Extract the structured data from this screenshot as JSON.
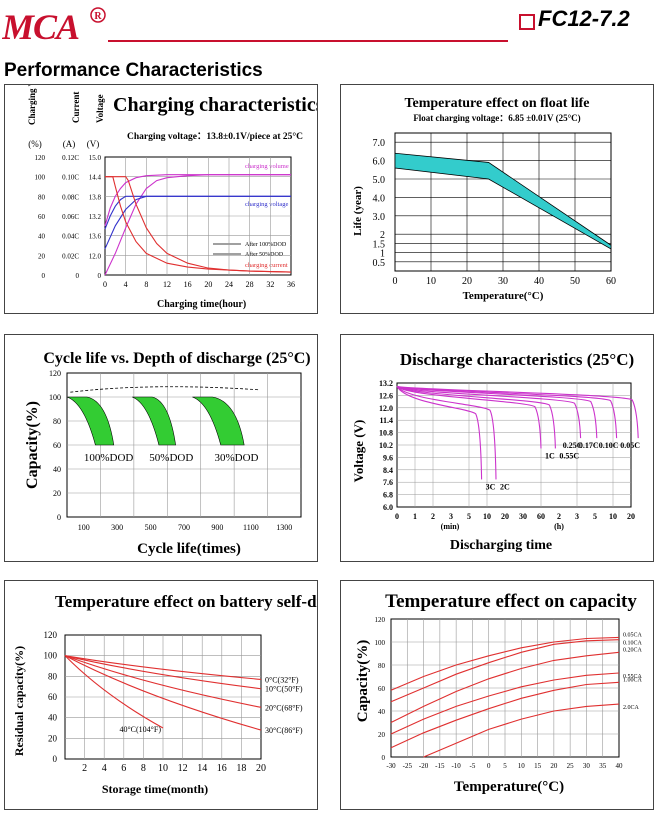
{
  "brand": {
    "logo_text": "MCA",
    "registered": "®",
    "color": "#c8102e"
  },
  "model": "FC12-7.2",
  "section_title": "Performance Characteristics",
  "chart_data": [
    {
      "id": "charging",
      "type": "line",
      "title": "Charging characteristics",
      "subtitle": "Charging voltage：13.8±0.1V/piece at 25°C",
      "xlabel": "Charging time(hour)",
      "axis_titles": {
        "volume": "Charging Volume",
        "current": "Current",
        "voltage": "Voltage"
      },
      "axis_units": {
        "volume": "(%)",
        "current": "(A)",
        "voltage": "(V)"
      },
      "x_ticks": [
        "0",
        "4",
        "8",
        "12",
        "16",
        "20",
        "24",
        "28",
        "32",
        "36"
      ],
      "xlim": [
        0,
        36
      ],
      "volume_ticks": [
        "120",
        "100",
        "80",
        "60",
        "40",
        "20",
        "0"
      ],
      "current_ticks": [
        "0.12C",
        "0.10C",
        "0.08C",
        "0.06C",
        "0.04C",
        "0.02C",
        "0"
      ],
      "voltage_ticks": [
        "15.0",
        "14.4",
        "13.8",
        "13.2",
        "13.6",
        "12.0",
        "0"
      ],
      "annotations": [
        "charging volume",
        "charging voltage",
        "charging current"
      ],
      "legend": [
        "After 100%DOD",
        "After 50%DOD"
      ],
      "series": [
        {
          "group": "volume",
          "color": "#cc33cc",
          "x": [
            0,
            2,
            4,
            6,
            8,
            10,
            12,
            16,
            20,
            24,
            28,
            36
          ],
          "y": [
            0,
            22,
            48,
            72,
            88,
            96,
            99,
            101,
            102,
            102,
            102,
            102
          ]
        },
        {
          "group": "volume",
          "color": "#cc33cc",
          "x": [
            0,
            1,
            2,
            3,
            4,
            6,
            8,
            12,
            20,
            36
          ],
          "y": [
            50,
            68,
            80,
            88,
            94,
            99,
            101,
            102,
            102,
            102
          ]
        },
        {
          "group": "voltage",
          "color": "#3333cc",
          "x": [
            0,
            2,
            4,
            6,
            8,
            10,
            12,
            20,
            36
          ],
          "y": [
            12.2,
            12.9,
            13.4,
            13.7,
            13.8,
            13.8,
            13.8,
            13.8,
            13.8
          ]
        },
        {
          "group": "voltage",
          "color": "#3333cc",
          "x": [
            0,
            1,
            2,
            3,
            4,
            6,
            8,
            36
          ],
          "y": [
            12.8,
            13.2,
            13.5,
            13.7,
            13.8,
            13.8,
            13.8,
            13.8
          ]
        },
        {
          "group": "current",
          "color": "#e03030",
          "x": [
            0,
            4,
            4.5,
            6,
            8,
            10,
            12,
            16,
            20,
            24,
            28,
            36
          ],
          "y": [
            100,
            100,
            96,
            72,
            48,
            32,
            22,
            12,
            7,
            5,
            4,
            3
          ]
        },
        {
          "group": "current",
          "color": "#e03030",
          "x": [
            0,
            1.5,
            2,
            3,
            4,
            6,
            8,
            12,
            16,
            20,
            28,
            36
          ],
          "y": [
            100,
            100,
            90,
            70,
            54,
            34,
            22,
            12,
            8,
            6,
            4,
            3
          ]
        }
      ]
    },
    {
      "id": "float_life",
      "type": "area",
      "title": "Temperature effect on float life",
      "subtitle": "Float charging voltage：6.85 ±0.01V (25°C)",
      "xlabel": "Temperature(°C)",
      "ylabel": "Life (year)",
      "x_ticks": [
        "0",
        "10",
        "20",
        "30",
        "40",
        "50",
        "60"
      ],
      "xlim": [
        0,
        60
      ],
      "y_ticks": [
        {
          "v": 0.5,
          "t": "0.5"
        },
        {
          "v": 1,
          "t": "1"
        },
        {
          "v": 1.5,
          "t": "1.5"
        },
        {
          "v": 2,
          "t": "2"
        },
        {
          "v": 3,
          "t": "3.0"
        },
        {
          "v": 4,
          "t": "4.0"
        },
        {
          "v": 5,
          "t": "5.0"
        },
        {
          "v": 6,
          "t": "6.0"
        },
        {
          "v": 7,
          "t": "7.0"
        }
      ],
      "ylim": [
        0,
        7.5
      ],
      "band": {
        "color": "#33cccc",
        "upper": {
          "x": [
            0,
            26,
            60
          ],
          "y": [
            6.4,
            5.9,
            1.4
          ]
        },
        "lower": {
          "x": [
            0,
            26,
            60
          ],
          "y": [
            5.6,
            5.0,
            1.2
          ]
        }
      }
    },
    {
      "id": "cycle_life",
      "type": "area",
      "title": "Cycle life vs. Depth of discharge (25°C)",
      "xlabel": "Cycle life(times)",
      "ylabel": "Capacity(%)",
      "x_ticks": [
        "100",
        "300",
        "500",
        "700",
        "900",
        "1100",
        "1300"
      ],
      "xlim": [
        0,
        1400
      ],
      "y_ticks": [
        "0",
        "20",
        "40",
        "60",
        "80",
        "100",
        "120"
      ],
      "ylim": [
        0,
        120
      ],
      "band_color": "#33cc33",
      "bands": [
        {
          "label": "100%DOD",
          "x0": 0,
          "x1": 330,
          "xa": 170,
          "xb": 280
        },
        {
          "label": "50%DOD",
          "x0": 390,
          "x1": 700,
          "xa": 550,
          "xb": 650
        },
        {
          "label": "30%DOD",
          "x0": 750,
          "x1": 1400,
          "xa": 920,
          "xb": 1060
        }
      ]
    },
    {
      "id": "discharge",
      "type": "line",
      "title": "Discharge characteristics (25°C)",
      "xlabel": "Discharging time",
      "ylabel": "Voltage (V)",
      "x_ticks": [
        "0",
        "1",
        "2",
        "3",
        "5",
        "10",
        "20",
        "30",
        "60",
        "2",
        "3",
        "5",
        "10",
        "20"
      ],
      "x_units": [
        "(min)",
        "(h)"
      ],
      "y_ticks": [
        "6.0",
        "6.8",
        "7.6",
        "8.4",
        "9.6",
        "10.2",
        "10.8",
        "11.4",
        "12.0",
        "12.6",
        "13.2"
      ],
      "line_color": "#cc33cc",
      "rates": [
        "3C",
        "2C",
        "1C",
        "0.55C",
        "0.25C",
        "0.17C",
        "0.10C",
        "0.05C"
      ]
    },
    {
      "id": "self_discharge",
      "type": "line",
      "title": "Temperature effect on battery self-discharge",
      "xlabel": "Storage time(month)",
      "ylabel": "Residual capacity(%)",
      "x_ticks": [
        "2",
        "4",
        "6",
        "8",
        "10",
        "12",
        "14",
        "16",
        "18",
        "20"
      ],
      "xlim": [
        0,
        20
      ],
      "y_ticks": [
        "0",
        "20",
        "40",
        "60",
        "80",
        "100",
        "120"
      ],
      "ylim": [
        0,
        120
      ],
      "series": [
        {
          "name": "0°C(32°F)",
          "color": "#e03030",
          "x": [
            0,
            20
          ],
          "y": [
            100,
            77
          ]
        },
        {
          "name": "10°C(50°F)",
          "color": "#e03030",
          "x": [
            0,
            20
          ],
          "y": [
            100,
            68
          ]
        },
        {
          "name": "20°C(68°F)",
          "color": "#e03030",
          "x": [
            0,
            20
          ],
          "y": [
            100,
            50
          ]
        },
        {
          "name": "30°C(86°F)",
          "color": "#e03030",
          "x": [
            0,
            20
          ],
          "y": [
            100,
            28
          ]
        },
        {
          "name": "40°C(104°F)",
          "color": "#e03030",
          "x": [
            0,
            10
          ],
          "y": [
            100,
            30
          ]
        }
      ]
    },
    {
      "id": "temp_capacity",
      "type": "line",
      "title": "Temperature effect on capacity",
      "xlabel": "Temperature(°C)",
      "ylabel": "Capacity(%)",
      "x_ticks": [
        "-30",
        "-25",
        "-20",
        "-15",
        "-10",
        "-5",
        "0",
        "5",
        "10",
        "15",
        "20",
        "25",
        "30",
        "35",
        "40"
      ],
      "xlim": [
        -30,
        40
      ],
      "y_ticks": [
        "0",
        "20",
        "40",
        "60",
        "80",
        "100",
        "120"
      ],
      "ylim": [
        0,
        120
      ],
      "series": [
        {
          "name": "0.05CA",
          "color": "#e03030",
          "x": [
            -30,
            -20,
            -10,
            0,
            10,
            20,
            30,
            40
          ],
          "y": [
            58,
            70,
            80,
            88,
            95,
            100,
            103,
            104
          ]
        },
        {
          "name": "0.10CA",
          "color": "#e03030",
          "x": [
            -30,
            -20,
            -10,
            0,
            10,
            20,
            30,
            40
          ],
          "y": [
            48,
            60,
            72,
            82,
            91,
            98,
            101,
            102
          ]
        },
        {
          "name": "0.20CA",
          "color": "#e03030",
          "x": [
            -30,
            -20,
            -10,
            0,
            10,
            20,
            30,
            40
          ],
          "y": [
            30,
            44,
            57,
            68,
            77,
            84,
            88,
            91
          ]
        },
        {
          "name": "0.55CA",
          "color": "#e03030",
          "x": [
            -30,
            -20,
            -10,
            0,
            10,
            20,
            30,
            40
          ],
          "y": [
            20,
            33,
            44,
            53,
            61,
            67,
            71,
            73
          ]
        },
        {
          "name": "1.00CA",
          "color": "#e03030",
          "x": [
            -30,
            -20,
            -10,
            0,
            10,
            20,
            30,
            40
          ],
          "y": [
            8,
            21,
            32,
            42,
            51,
            58,
            63,
            65
          ]
        },
        {
          "name": "2.0CA",
          "color": "#e03030",
          "x": [
            -20,
            -10,
            0,
            10,
            20,
            30,
            40
          ],
          "y": [
            0,
            12,
            24,
            33,
            40,
            44,
            46
          ]
        }
      ]
    }
  ]
}
